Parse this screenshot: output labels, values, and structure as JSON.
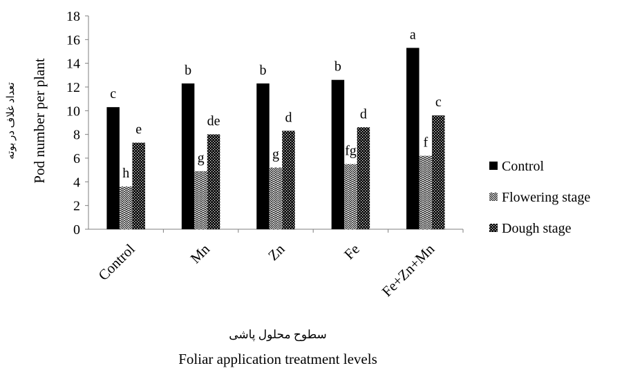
{
  "chart_data": {
    "type": "bar",
    "title": "",
    "categories": [
      "Control",
      "Mn",
      "Zn",
      "Fe",
      "Fe+Zn+Mn"
    ],
    "series": [
      {
        "name": "Control",
        "values": [
          10.3,
          12.3,
          12.3,
          12.6,
          15.3
        ],
        "labels": [
          "c",
          "b",
          "b",
          "b",
          "a"
        ],
        "color": "#000000",
        "pattern": "solid"
      },
      {
        "name": "Flowering stage",
        "values": [
          3.6,
          4.9,
          5.2,
          5.5,
          6.2
        ],
        "labels": [
          "h",
          "g",
          "g",
          "fg",
          "f"
        ],
        "color": "#000000",
        "pattern": "zigzag"
      },
      {
        "name": "Dough stage",
        "values": [
          7.3,
          8.0,
          8.3,
          8.6,
          9.6
        ],
        "labels": [
          "e",
          "de",
          "d",
          "d",
          "c"
        ],
        "color": "#000000",
        "pattern": "checker"
      }
    ],
    "ylim": [
      0,
      18
    ],
    "yticks": [
      0,
      2,
      4,
      6,
      8,
      10,
      12,
      14,
      16,
      18
    ],
    "ylabel": "Pod number per plant",
    "ylabel_fa": "تعداد غلاف در بوته",
    "xlabel": "Foliar application treatment levels",
    "xlabel_fa": "سطوح محلول پاشی",
    "legend_position": "right",
    "grid": false
  }
}
